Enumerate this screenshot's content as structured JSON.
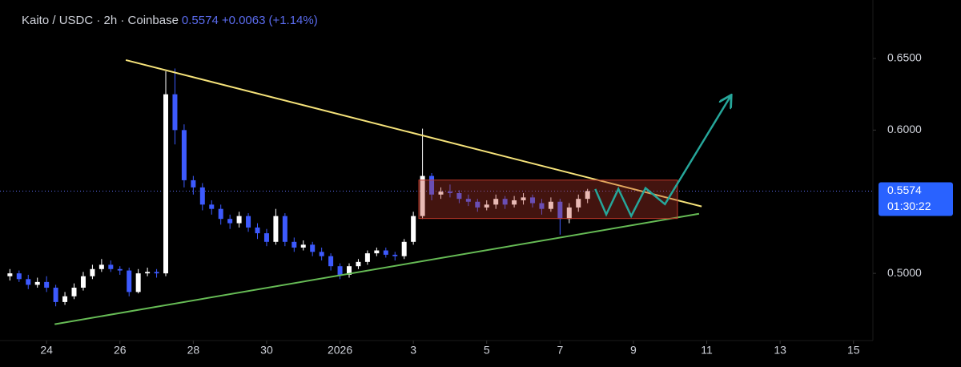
{
  "chart_data": {
    "type": "candlestick",
    "title": "Kaito / USDC · 2h · Coinbase",
    "last_price": 0.5574,
    "change": "+0.0063",
    "change_pct": "(+1.14%)",
    "countdown": "01:30:22",
    "x": [
      23,
      23.25,
      23.5,
      23.75,
      24,
      24.25,
      24.5,
      24.75,
      25,
      25.25,
      25.5,
      25.75,
      26,
      26.25,
      26.5,
      26.75,
      27,
      27.25,
      27.5,
      27.75,
      28,
      28.25,
      28.5,
      28.75,
      29,
      29.25,
      29.5,
      29.75,
      30,
      30.25,
      30.5,
      30.75,
      31,
      31.25,
      31.5,
      31.75,
      32,
      32.25,
      32.5,
      32.75,
      33,
      33.25,
      33.5,
      33.75,
      34,
      34.25,
      34.5,
      34.75,
      35,
      35.25,
      35.5,
      35.75,
      36,
      36.25,
      36.5,
      36.75,
      37,
      37.25,
      37.5,
      37.75,
      38,
      38.25,
      38.5,
      38.75
    ],
    "open": [
      0.498,
      0.5,
      0.496,
      0.492,
      0.494,
      0.49,
      0.48,
      0.484,
      0.49,
      0.498,
      0.503,
      0.506,
      0.503,
      0.502,
      0.487,
      0.5,
      0.501,
      0.5,
      0.625,
      0.6,
      0.565,
      0.56,
      0.548,
      0.545,
      0.538,
      0.535,
      0.54,
      0.532,
      0.528,
      0.522,
      0.54,
      0.522,
      0.518,
      0.52,
      0.515,
      0.512,
      0.505,
      0.499,
      0.505,
      0.508,
      0.514,
      0.516,
      0.513,
      0.512,
      0.522,
      0.54,
      0.568,
      0.555,
      0.557,
      0.556,
      0.552,
      0.55,
      0.546,
      0.548,
      0.552,
      0.548,
      0.551,
      0.553,
      0.549,
      0.545,
      0.55,
      0.538,
      0.546,
      0.552
    ],
    "high": [
      0.503,
      0.502,
      0.499,
      0.497,
      0.498,
      0.492,
      0.487,
      0.493,
      0.501,
      0.506,
      0.51,
      0.509,
      0.505,
      0.504,
      0.503,
      0.504,
      0.503,
      0.641,
      0.643,
      0.604,
      0.568,
      0.563,
      0.551,
      0.548,
      0.541,
      0.543,
      0.542,
      0.535,
      0.531,
      0.545,
      0.542,
      0.525,
      0.523,
      0.522,
      0.518,
      0.514,
      0.507,
      0.507,
      0.51,
      0.516,
      0.518,
      0.518,
      0.515,
      0.524,
      0.543,
      0.601,
      0.57,
      0.56,
      0.562,
      0.558,
      0.555,
      0.552,
      0.551,
      0.555,
      0.554,
      0.554,
      0.556,
      0.555,
      0.552,
      0.553,
      0.552,
      0.549,
      0.555,
      0.559
    ],
    "low": [
      0.495,
      0.494,
      0.489,
      0.49,
      0.487,
      0.477,
      0.478,
      0.482,
      0.488,
      0.496,
      0.501,
      0.501,
      0.499,
      0.484,
      0.486,
      0.498,
      0.497,
      0.498,
      0.59,
      0.56,
      0.555,
      0.544,
      0.541,
      0.534,
      0.531,
      0.532,
      0.529,
      0.524,
      0.519,
      0.52,
      0.519,
      0.515,
      0.516,
      0.512,
      0.509,
      0.502,
      0.496,
      0.497,
      0.503,
      0.506,
      0.512,
      0.511,
      0.509,
      0.51,
      0.52,
      0.538,
      0.551,
      0.552,
      0.553,
      0.549,
      0.547,
      0.543,
      0.544,
      0.545,
      0.545,
      0.546,
      0.548,
      0.546,
      0.541,
      0.543,
      0.527,
      0.535,
      0.543,
      0.549
    ],
    "close": [
      0.5,
      0.496,
      0.492,
      0.494,
      0.49,
      0.48,
      0.484,
      0.49,
      0.498,
      0.503,
      0.506,
      0.503,
      0.502,
      0.487,
      0.5,
      0.501,
      0.5,
      0.625,
      0.6,
      0.565,
      0.56,
      0.548,
      0.545,
      0.538,
      0.535,
      0.54,
      0.532,
      0.528,
      0.522,
      0.54,
      0.522,
      0.518,
      0.52,
      0.515,
      0.512,
      0.505,
      0.499,
      0.505,
      0.508,
      0.514,
      0.516,
      0.513,
      0.512,
      0.522,
      0.54,
      0.568,
      0.555,
      0.557,
      0.556,
      0.552,
      0.55,
      0.546,
      0.548,
      0.552,
      0.548,
      0.551,
      0.553,
      0.549,
      0.545,
      0.55,
      0.538,
      0.546,
      0.552,
      0.5574
    ],
    "up_color": "#ffffff",
    "down_color": "#3d5afe",
    "price_line_color": "#5b6cf0",
    "xlim": [
      22.73,
      46.53
    ],
    "ylim": [
      0.4531,
      0.6908
    ],
    "xticks": [
      24,
      26,
      28,
      30,
      {
        "value": 32,
        "label": "2026"
      },
      {
        "value": 34,
        "label": "3"
      },
      {
        "value": 36,
        "label": "5"
      },
      {
        "value": 38,
        "label": "7"
      },
      {
        "value": 40,
        "label": "9"
      },
      {
        "value": 42,
        "label": "11"
      },
      {
        "value": 44,
        "label": "13"
      },
      {
        "value": 46,
        "label": "15"
      }
    ],
    "yticks": [
      {
        "value": 0.5,
        "label": "0.5000"
      },
      {
        "value": 0.6,
        "label": "0.6000"
      },
      {
        "value": 0.65,
        "label": "0.6500"
      }
    ],
    "grid": false,
    "drawings": [
      {
        "type": "line",
        "color": "#f5e27a",
        "x": [
          26.16,
          41.86
        ],
        "y": [
          0.6489,
          0.5467
        ]
      },
      {
        "type": "line",
        "color": "#66bb55",
        "x": [
          24.22,
          41.79
        ],
        "y": [
          0.4645,
          0.5416
        ]
      },
      {
        "type": "rect",
        "color": "#c0392b",
        "x": [
          34.15,
          41.2
        ],
        "y": [
          0.5651,
          0.5383
        ]
      },
      {
        "type": "arrow",
        "color": "#26a69a",
        "x": [
          38.96,
          39.26,
          39.59,
          39.94,
          40.33,
          40.86,
          42.65
        ],
        "y": [
          0.5589,
          0.5411,
          0.5589,
          0.54,
          0.5595,
          0.5483,
          0.6237
        ]
      }
    ]
  }
}
